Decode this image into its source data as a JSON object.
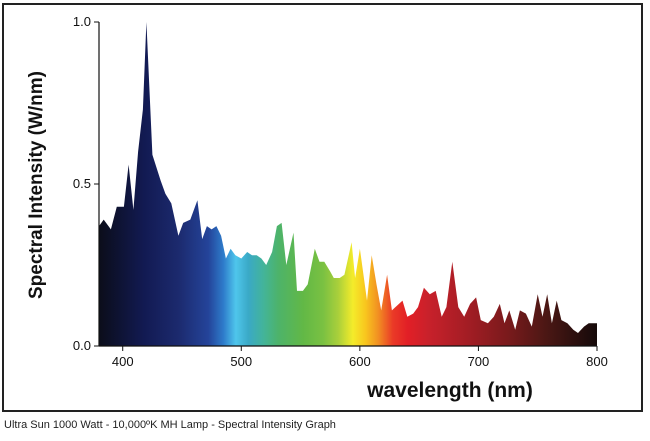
{
  "caption": "Ultra Sun 1000 Watt - 10,000ºK MH Lamp - Spectral Intensity Graph",
  "chart_data": {
    "type": "area",
    "xlabel": "wavelength (nm)",
    "ylabel": "Spectral Intensity (W/nm)",
    "xlim": [
      380,
      800
    ],
    "ylim": [
      0,
      1.0
    ],
    "x_ticks": [
      400,
      500,
      600,
      700,
      800
    ],
    "x_tick_labels": [
      "400",
      "500",
      "600",
      "700",
      "800"
    ],
    "y_ticks": [
      0,
      0.5,
      1.0
    ],
    "y_tick_labels": [
      "0.0",
      "0.5",
      "1.0"
    ],
    "grid": false,
    "legend": "none",
    "fill": "visible-spectrum gradient by wavelength",
    "series": [
      {
        "x": [
          380,
          384,
          390,
          395,
          401,
          405,
          409,
          413,
          417,
          420,
          425,
          432,
          436,
          441,
          447,
          451,
          457,
          463,
          467,
          471,
          475,
          479,
          483,
          487,
          491,
          495,
          500,
          505,
          509,
          513,
          517,
          521,
          526,
          530,
          534,
          538,
          544,
          547,
          552,
          556,
          562,
          566,
          570,
          575,
          578,
          583,
          587,
          593,
          596,
          600,
          606,
          610,
          614,
          618,
          623,
          627,
          630,
          636,
          640,
          645,
          649,
          654,
          659,
          664,
          669,
          673,
          678,
          683,
          688,
          693,
          698,
          702,
          708,
          713,
          718,
          722,
          726,
          731,
          735,
          740,
          745,
          750,
          754,
          758,
          762,
          766,
          770,
          775,
          780,
          784,
          789,
          793,
          796,
          800
        ],
        "y": [
          0.37,
          0.39,
          0.36,
          0.43,
          0.43,
          0.56,
          0.42,
          0.6,
          0.73,
          1.0,
          0.59,
          0.51,
          0.47,
          0.44,
          0.34,
          0.38,
          0.39,
          0.45,
          0.33,
          0.37,
          0.36,
          0.37,
          0.34,
          0.27,
          0.3,
          0.28,
          0.27,
          0.29,
          0.28,
          0.28,
          0.27,
          0.25,
          0.29,
          0.37,
          0.38,
          0.25,
          0.35,
          0.17,
          0.17,
          0.19,
          0.3,
          0.26,
          0.26,
          0.23,
          0.21,
          0.21,
          0.22,
          0.32,
          0.21,
          0.3,
          0.14,
          0.28,
          0.19,
          0.11,
          0.22,
          0.11,
          0.12,
          0.14,
          0.09,
          0.1,
          0.12,
          0.18,
          0.16,
          0.17,
          0.09,
          0.12,
          0.26,
          0.12,
          0.09,
          0.13,
          0.15,
          0.08,
          0.07,
          0.09,
          0.13,
          0.07,
          0.11,
          0.05,
          0.11,
          0.1,
          0.06,
          0.16,
          0.09,
          0.16,
          0.07,
          0.14,
          0.08,
          0.07,
          0.05,
          0.04,
          0.06,
          0.07,
          0.07,
          0.07
        ]
      }
    ]
  }
}
